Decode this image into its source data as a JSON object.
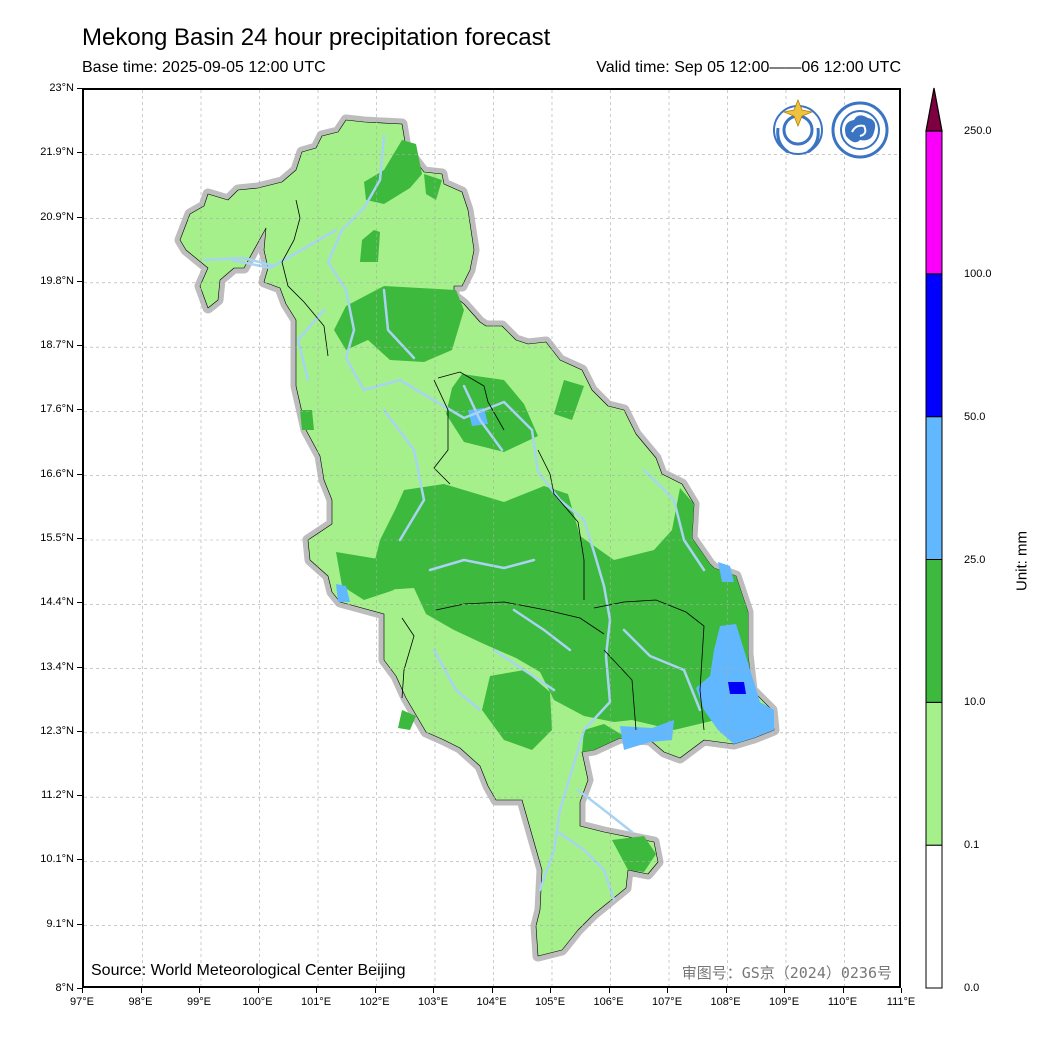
{
  "header": {
    "title": "Mekong Basin 24 hour precipitation forecast",
    "base_time": "Base time: 2025-09-05 12:00 UTC",
    "valid_time": "Valid time: Sep 05 12:00——06 12:00 UTC"
  },
  "axes": {
    "latitude_labels": [
      "23°N",
      "21.9°N",
      "20.9°N",
      "19.8°N",
      "18.7°N",
      "17.6°N",
      "16.6°N",
      "15.5°N",
      "14.4°N",
      "13.4°N",
      "12.3°N",
      "11.2°N",
      "10.1°N",
      "9.1°N",
      "8°N"
    ],
    "longitude_labels": [
      "97°E",
      "98°E",
      "99°E",
      "100°E",
      "101°E",
      "102°E",
      "103°E",
      "104°E",
      "105°E",
      "106°E",
      "107°E",
      "108°E",
      "109°E",
      "110°E",
      "111°E"
    ],
    "lat_range": [
      8,
      23
    ],
    "lon_range": [
      97,
      111
    ],
    "grid": true
  },
  "footer": {
    "source": "Source: World Meteorological Center Beijing",
    "review_no": "审图号：GS京（2024）0236号"
  },
  "colorbar": {
    "unit": "Unit: mm",
    "levels": [
      "0.0",
      "0.1",
      "10.0",
      "25.0",
      "50.0",
      "100.0",
      "250.0"
    ],
    "colors": [
      "#ffffff",
      "#a5f08b",
      "#3db93d",
      "#61b8ff",
      "#0000ff",
      "#fa00fa",
      "#7f0040"
    ]
  },
  "logos": [
    {
      "name": "wmo-logo-icon"
    },
    {
      "name": "cma-logo-icon"
    }
  ]
}
